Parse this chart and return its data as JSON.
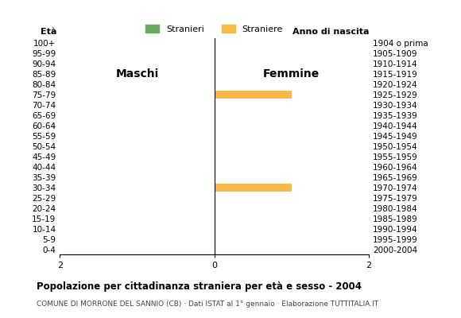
{
  "age_groups": [
    "100+",
    "95-99",
    "90-94",
    "85-89",
    "80-84",
    "75-79",
    "70-74",
    "65-69",
    "60-64",
    "55-59",
    "50-54",
    "45-49",
    "40-44",
    "35-39",
    "30-34",
    "25-29",
    "20-24",
    "15-19",
    "10-14",
    "5-9",
    "0-4"
  ],
  "birth_years": [
    "1904 o prima",
    "1905-1909",
    "1910-1914",
    "1915-1919",
    "1920-1924",
    "1925-1929",
    "1930-1934",
    "1935-1939",
    "1940-1944",
    "1945-1949",
    "1950-1954",
    "1955-1959",
    "1960-1964",
    "1965-1969",
    "1970-1974",
    "1975-1979",
    "1980-1984",
    "1985-1989",
    "1990-1994",
    "1995-1999",
    "2000-2004"
  ],
  "males": [
    0,
    0,
    0,
    0,
    0,
    0,
    0,
    0,
    0,
    0,
    0,
    0,
    0,
    0,
    0,
    0,
    0,
    0,
    0,
    0,
    0
  ],
  "females": [
    0,
    0,
    0,
    0,
    0,
    1,
    0,
    0,
    0,
    0,
    0,
    0,
    0,
    0,
    1,
    0,
    0,
    0,
    0,
    0,
    0
  ],
  "male_color": "#6aaa5e",
  "female_color": "#f9b84a",
  "xlim": 2,
  "title": "Popolazione per cittadinanza straniera per età e sesso - 2004",
  "subtitle": "COMUNE DI MORRONE DEL SANNIO (CB) · Dati ISTAT al 1° gennaio · Elaborazione TUTTITALIA.IT",
  "legend_male": "Stranieri",
  "legend_female": "Straniere",
  "label_eta": "Età",
  "label_anno": "Anno di nascita",
  "label_maschi": "Maschi",
  "label_femmine": "Femmine",
  "xticks": [
    -2,
    0,
    2
  ],
  "background_color": "#ffffff"
}
